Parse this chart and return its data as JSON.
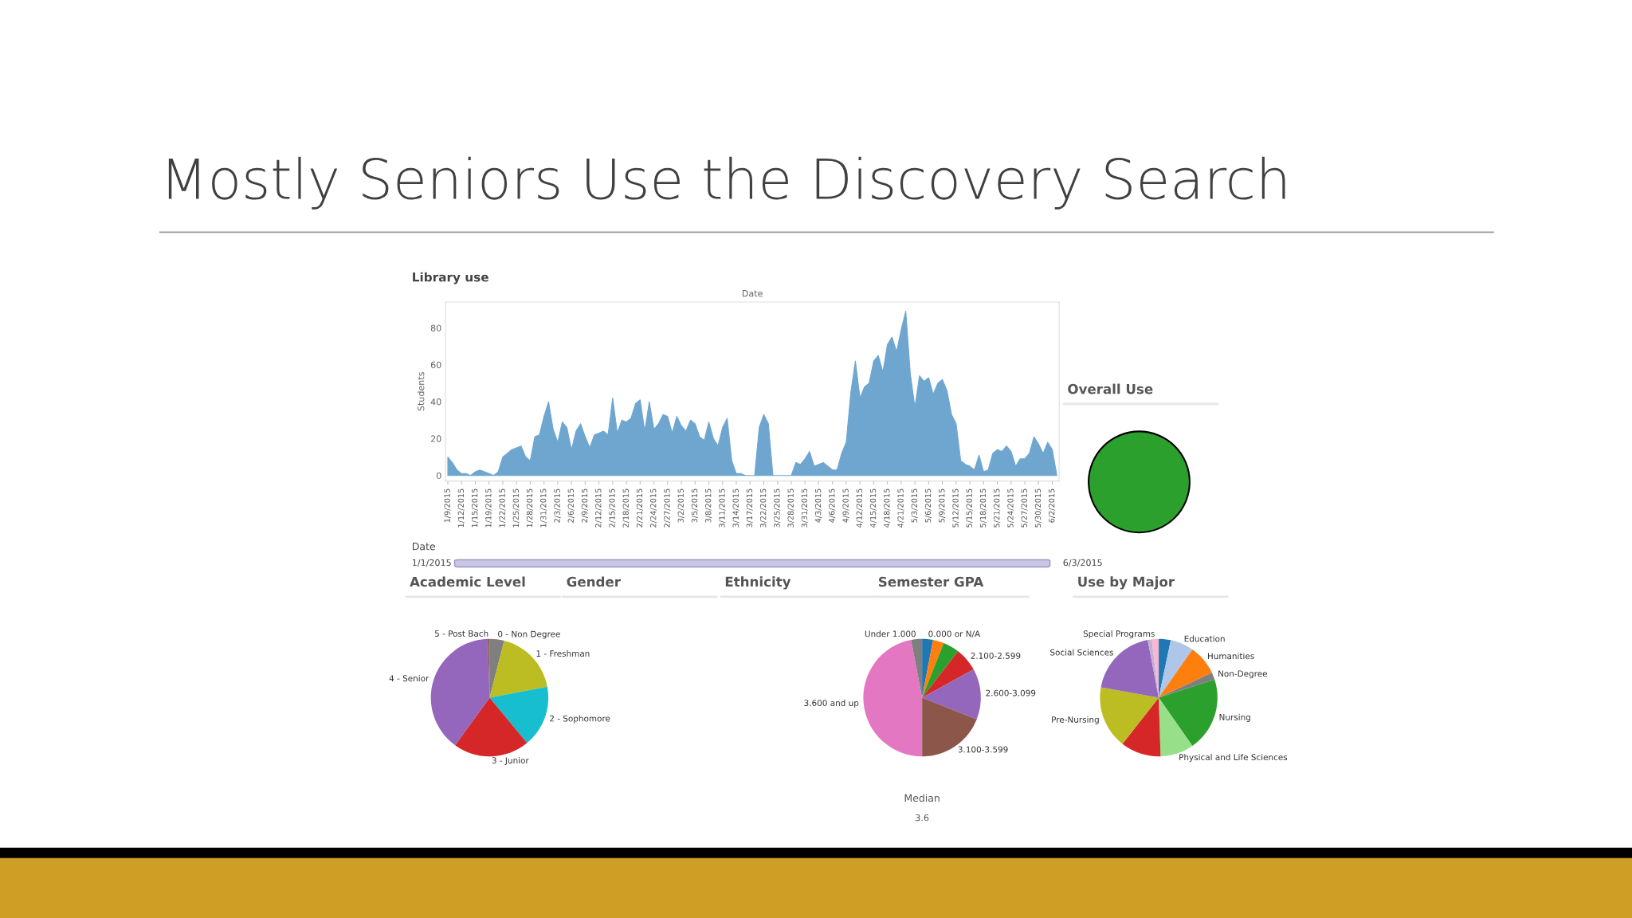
{
  "chart_data": [
    {
      "type": "other",
      "title": "Mostly Seniors Use the Discovery Search"
    },
    {
      "type": "area",
      "title": "Library use",
      "x2label": "Date",
      "ylabel": "Students",
      "categories": [
        "1/9/2015",
        null,
        null,
        "1/12/2015",
        null,
        null,
        "1/15/2015",
        null,
        null,
        "1/19/2015",
        null,
        null,
        "1/22/2015",
        null,
        null,
        "1/25/2015",
        null,
        null,
        "1/28/2015",
        null,
        null,
        "1/31/2015",
        null,
        null,
        "2/3/2015",
        null,
        null,
        "2/6/2015",
        null,
        null,
        "2/9/2015",
        null,
        null,
        "2/12/2015",
        null,
        null,
        "2/15/2015",
        null,
        null,
        "2/18/2015",
        null,
        null,
        "2/21/2015",
        null,
        null,
        "2/24/2015",
        null,
        null,
        "2/27/2015",
        null,
        null,
        "3/2/2015",
        null,
        null,
        "3/5/2015",
        null,
        null,
        "3/8/2015",
        null,
        null,
        "3/11/2015",
        null,
        null,
        "3/14/2015",
        null,
        null,
        "3/17/2015",
        null,
        null,
        "3/22/2015",
        null,
        null,
        "3/25/2015",
        null,
        null,
        "3/28/2015",
        null,
        null,
        "3/31/2015",
        null,
        null,
        "4/3/2015",
        null,
        null,
        "4/6/2015",
        null,
        null,
        "4/9/2015",
        null,
        null,
        "4/12/2015",
        null,
        null,
        "4/15/2015",
        null,
        null,
        "4/18/2015",
        null,
        null,
        "4/21/2015",
        null,
        null,
        "5/3/2015",
        null,
        null,
        "5/6/2015",
        null,
        null,
        "5/9/2015",
        null,
        null,
        "5/12/2015",
        null,
        null,
        "5/15/2015",
        null,
        null,
        "5/18/2015",
        null,
        null,
        "5/21/2015",
        null,
        null,
        "5/24/2015",
        null,
        null,
        "5/27/2015",
        null,
        null,
        "5/30/2015",
        null,
        null,
        "6/2/2015",
        null
      ],
      "series": [
        {
          "color": "#6fa6d0",
          "values": [
            10,
            7,
            3,
            1,
            1,
            0,
            2,
            3,
            2,
            1,
            0,
            2,
            10,
            12,
            14,
            15,
            16,
            10,
            8,
            21,
            22,
            32,
            40,
            25,
            18,
            29,
            26,
            14,
            24,
            28,
            21,
            15,
            22,
            23,
            24,
            22,
            42,
            23,
            30,
            29,
            31,
            39,
            41,
            24,
            40,
            25,
            28,
            33,
            32,
            23,
            32,
            27,
            24,
            30,
            28,
            21,
            19,
            29,
            20,
            16,
            26,
            31,
            8,
            1,
            1,
            0,
            0,
            0,
            26,
            33,
            28,
            0,
            0,
            0,
            0,
            0,
            7,
            6,
            9,
            13,
            5,
            6,
            7,
            5,
            3,
            3,
            12,
            18,
            45,
            62,
            42,
            48,
            50,
            62,
            65,
            56,
            71,
            75,
            67,
            79,
            89,
            55,
            37,
            54,
            51,
            53,
            44,
            50,
            52,
            46,
            33,
            28,
            8,
            6,
            5,
            3,
            11,
            2,
            3,
            12,
            14,
            13,
            16,
            13,
            5,
            9,
            9,
            12,
            21,
            17,
            12,
            18,
            14,
            0
          ]
        }
      ],
      "ylim": [
        -3,
        94
      ],
      "yticks": [
        0,
        20,
        40,
        60,
        80
      ],
      "annotations": [
        "Date",
        "1/1/2015",
        "6/3/2015"
      ]
    },
    {
      "type": "pie",
      "title": "Overall Use",
      "categories": [
        null
      ],
      "values": [
        100
      ],
      "colors": [
        "#2ca02c"
      ]
    },
    {
      "type": "pie",
      "title": "Academic Level",
      "categories": [
        "0 - Non Degree",
        "1 - Freshman",
        "2 - Sophomore",
        "3 - Junior",
        "4 - Senior",
        "5 - Post Bach"
      ],
      "values": [
        4,
        18,
        17,
        21,
        39.5,
        0.5
      ],
      "colors": [
        "#7f7f7f",
        "#bcbd22",
        "#17becf",
        "#d62728",
        "#9467bd",
        "#8c564b"
      ]
    },
    {
      "type": "other",
      "title": "Gender"
    },
    {
      "type": "other",
      "title": "Ethnicity"
    },
    {
      "type": "pie",
      "title": "Semester GPA",
      "categories": [
        "0.000 or N/A",
        null,
        null,
        "2.100-2.599",
        "2.600-3.099",
        "3.100-3.599",
        "3.600 and up",
        "Under 1.000"
      ],
      "values": [
        3,
        3,
        4.5,
        6.5,
        14,
        19,
        47,
        3
      ],
      "colors": [
        "#1f77b4",
        "#ff7f0e",
        "#2ca02c",
        "#d62728",
        "#9467bd",
        "#8c564b",
        "#e377c2",
        "#7f7f7f"
      ],
      "annotations": [
        "Median",
        "3.6"
      ]
    },
    {
      "type": "pie",
      "title": "Use by Major",
      "categories": [
        null,
        "Education",
        "Humanities",
        "Non-Degree",
        "Nursing",
        "Physical and Life Sciences",
        null,
        "Pre-Nursing",
        "Social Sciences",
        null,
        "Special Programs"
      ],
      "values": [
        3.3,
        6.4,
        8.3,
        2,
        20.3,
        9.2,
        11.1,
        17.2,
        19.2,
        1.1,
        1.9
      ],
      "colors": [
        "#1f77b4",
        "#aec7e8",
        "#ff7f0e",
        "#7f7f7f",
        "#2ca02c",
        "#98df8a",
        "#d62728",
        "#bcbd22",
        "#9467bd",
        "#c5b0d5",
        "#f7b6d2"
      ]
    }
  ]
}
